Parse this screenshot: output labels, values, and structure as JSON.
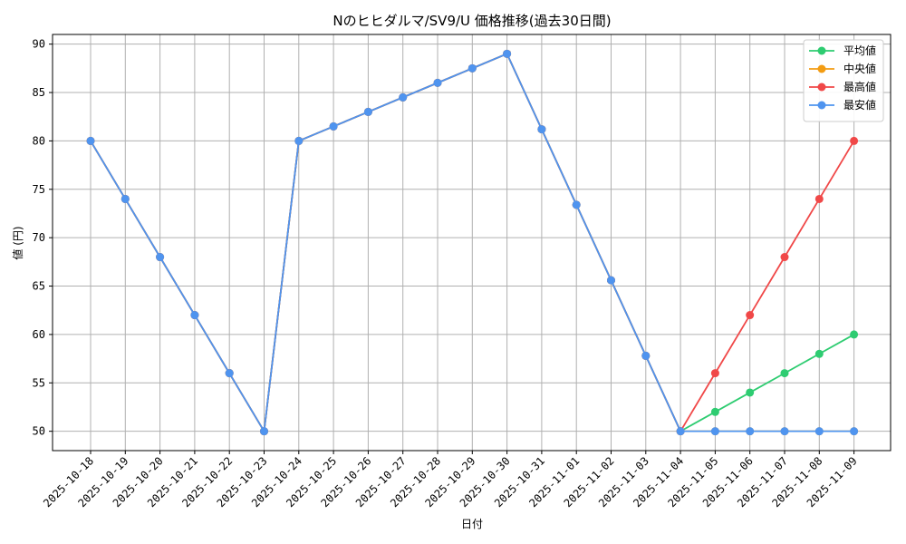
{
  "chart_data": {
    "type": "line",
    "title": "Nのヒヒダルマ/SV9/U 価格推移(過去30日間)",
    "xlabel": "日付",
    "ylabel": "値 (円)",
    "ylim": [
      48,
      91
    ],
    "yticks": [
      50,
      55,
      60,
      65,
      70,
      75,
      80,
      85,
      90
    ],
    "grid": true,
    "legend_position": "top-right",
    "categories": [
      "2025-10-18",
      "2025-10-19",
      "2025-10-20",
      "2025-10-21",
      "2025-10-22",
      "2025-10-23",
      "2025-10-24",
      "2025-10-25",
      "2025-10-26",
      "2025-10-27",
      "2025-10-28",
      "2025-10-29",
      "2025-10-30",
      "2025-10-31",
      "2025-11-01",
      "2025-11-02",
      "2025-11-03",
      "2025-11-04",
      "2025-11-05",
      "2025-11-06",
      "2025-11-07",
      "2025-11-08",
      "2025-11-09"
    ],
    "series": [
      {
        "name": "平均値",
        "color": "#2ecc71",
        "values": [
          80,
          74,
          68,
          62,
          56,
          50,
          80,
          81.5,
          83,
          84.5,
          86,
          87.5,
          89,
          81.2,
          73.4,
          65.6,
          57.8,
          50,
          52,
          54,
          56,
          58,
          60
        ]
      },
      {
        "name": "中央値",
        "color": "#f39c12",
        "values": [
          80,
          74,
          68,
          62,
          56,
          50,
          80,
          81.5,
          83,
          84.5,
          86,
          87.5,
          89,
          81.2,
          73.4,
          65.6,
          57.8,
          50,
          50,
          50,
          50,
          50,
          50
        ]
      },
      {
        "name": "最高値",
        "color": "#f04848",
        "values": [
          80,
          74,
          68,
          62,
          56,
          50,
          80,
          81.5,
          83,
          84.5,
          86,
          87.5,
          89,
          81.2,
          73.4,
          65.6,
          57.8,
          50,
          56,
          62,
          68,
          74,
          80
        ]
      },
      {
        "name": "最安値",
        "color": "#4f94ef",
        "values": [
          80,
          74,
          68,
          62,
          56,
          50,
          80,
          81.5,
          83,
          84.5,
          86,
          87.5,
          89,
          81.2,
          73.4,
          65.6,
          57.8,
          50,
          50,
          50,
          50,
          50,
          50
        ]
      }
    ]
  }
}
